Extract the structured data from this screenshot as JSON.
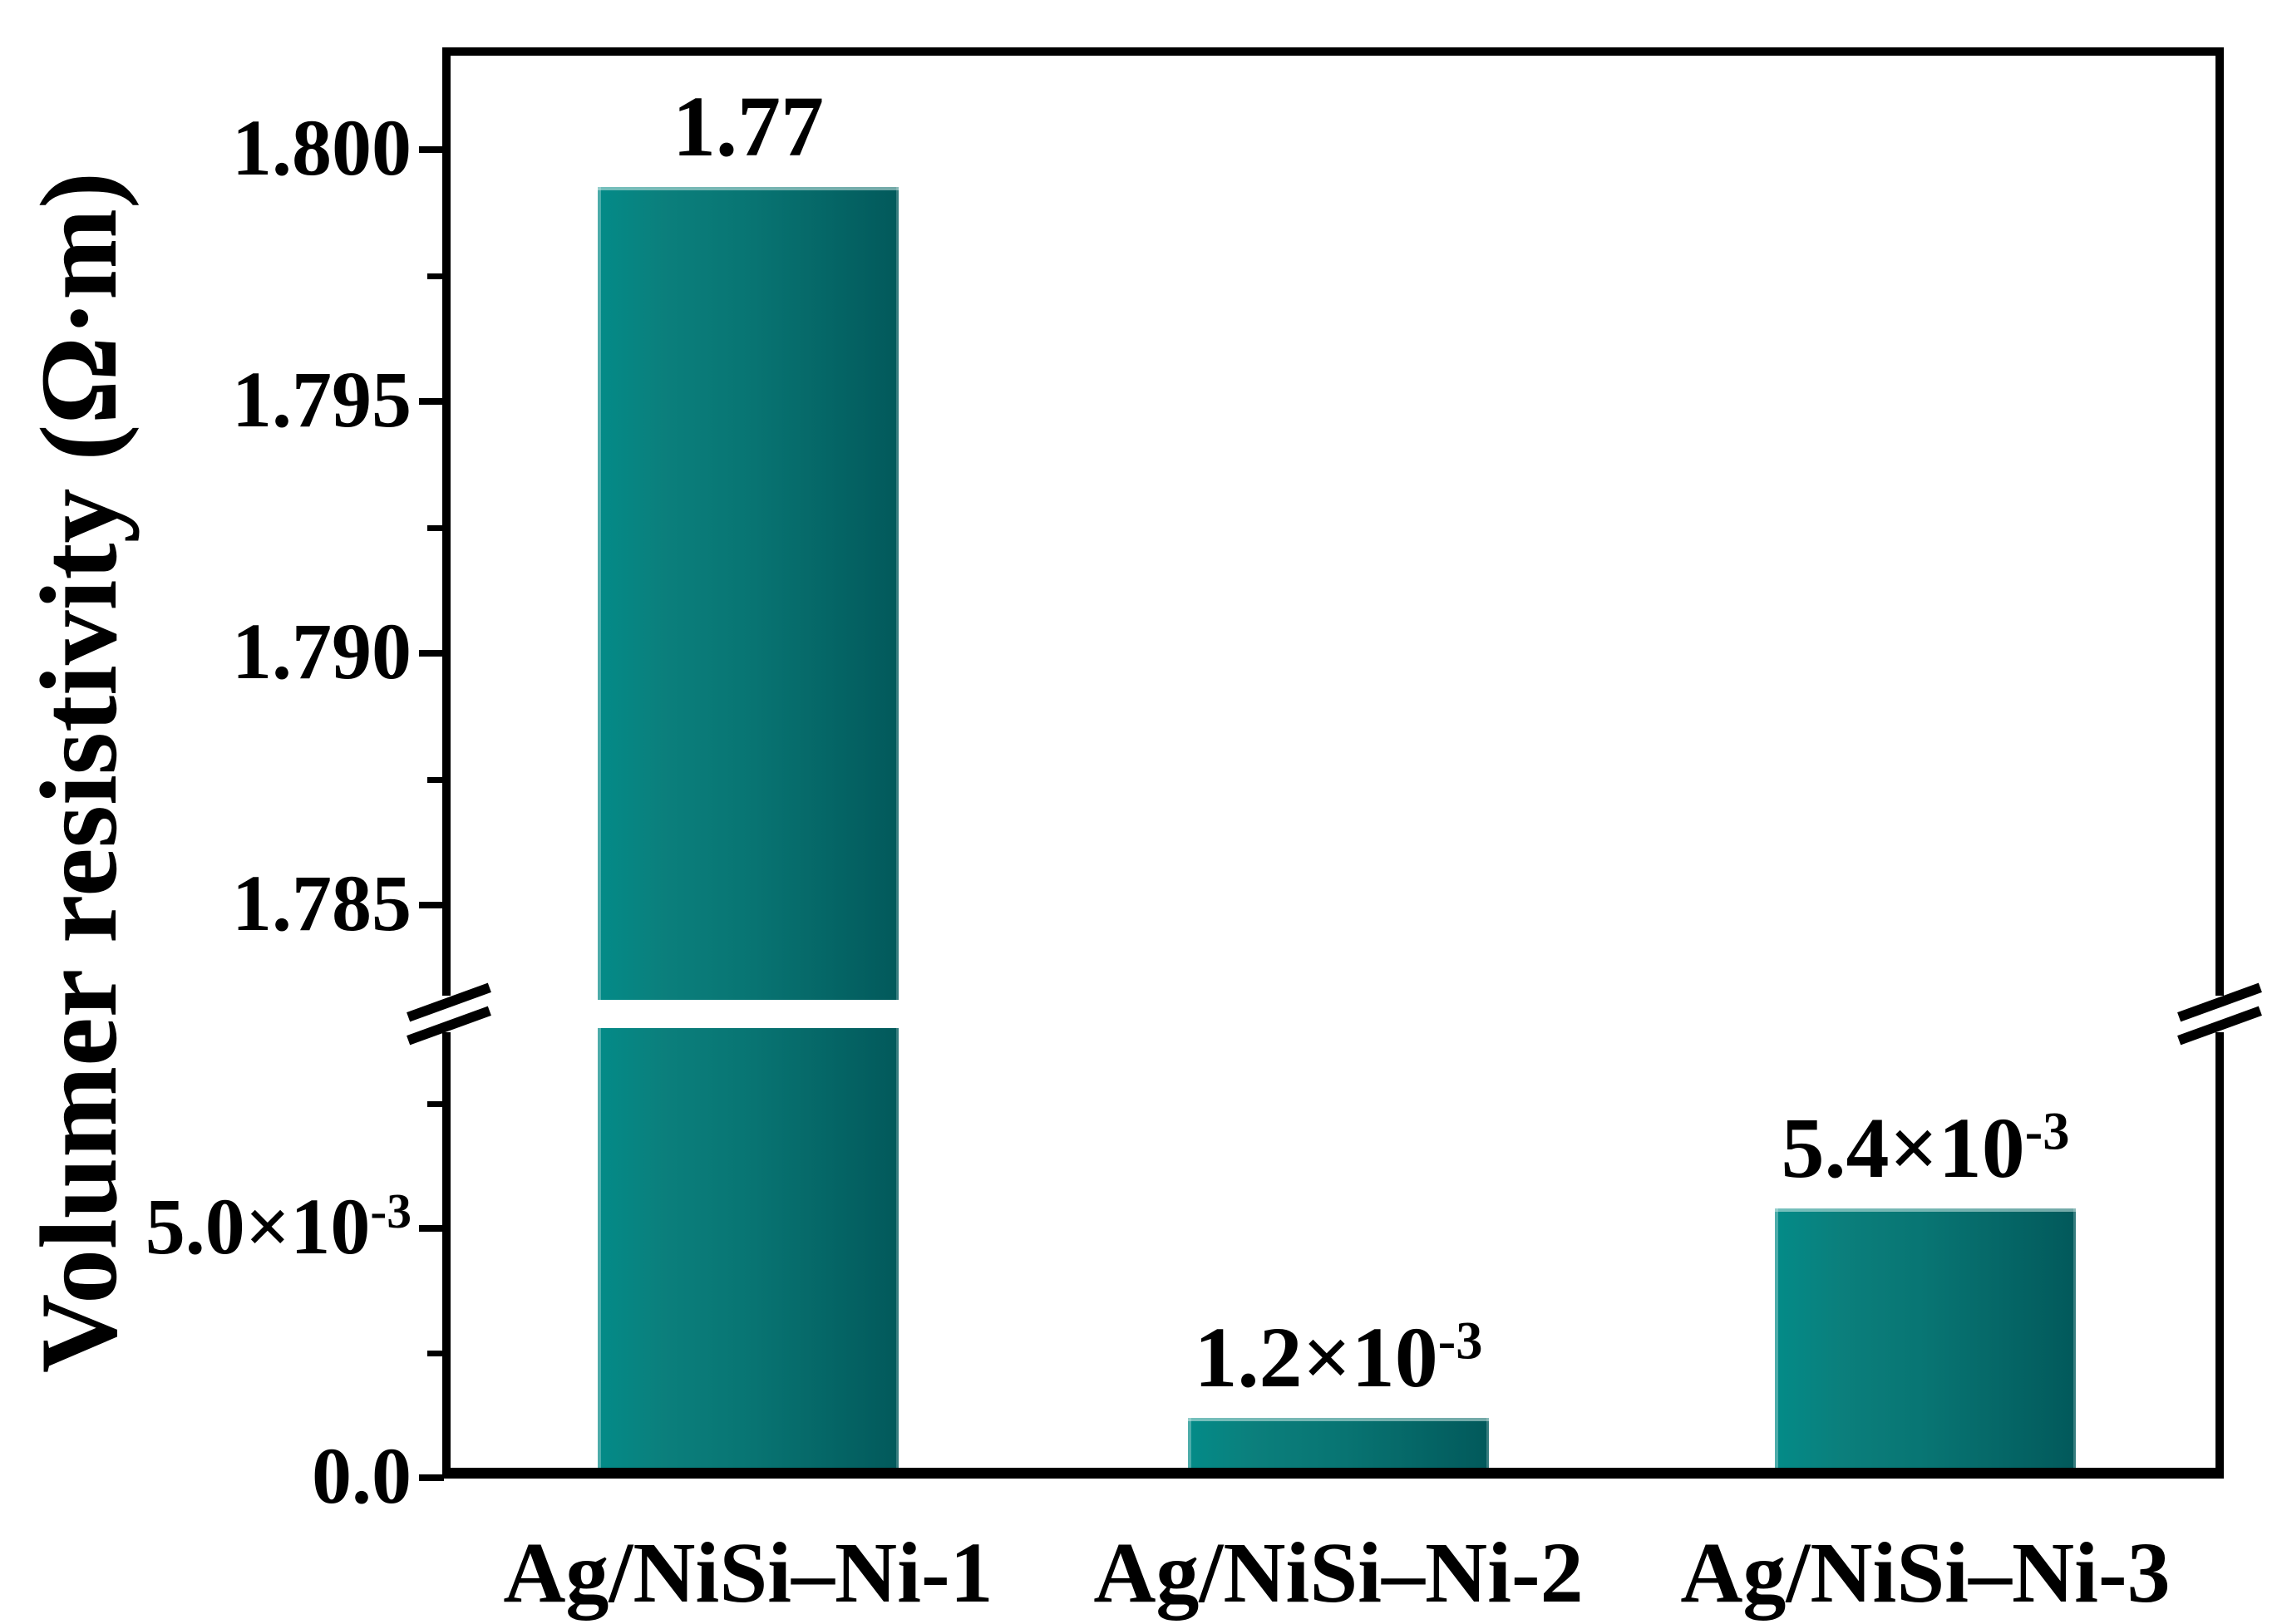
{
  "figure": {
    "background": "#ffffff"
  },
  "chart_data": {
    "type": "bar",
    "title": "",
    "xlabel": "",
    "ylabel": "Volumer resistivity (Ω·m)",
    "categories": [
      "Ag/NiSi–Ni-1",
      "Ag/NiSi–Ni-2",
      "Ag/NiSi–Ni-3"
    ],
    "values": [
      1.77,
      0.0012,
      0.0054
    ],
    "bar_labels": [
      {
        "base": "1.77",
        "sup": ""
      },
      {
        "base": "1.2×10",
        "sup": "-3"
      },
      {
        "base": "5.4×10",
        "sup": "-3"
      }
    ],
    "axis": {
      "broken": true,
      "break_between": [
        "8.8×10⁻³",
        "1.783"
      ],
      "lower_range": [
        0,
        0.0089
      ],
      "upper_range": [
        1.783,
        1.802
      ],
      "lower_major_step": 0.005,
      "upper_major_step": 0.005,
      "grid": false,
      "legend": null
    },
    "y_upper_major_ticks": [
      {
        "value": 1.8,
        "label": "1.800"
      },
      {
        "value": 1.795,
        "label": "1.795"
      },
      {
        "value": 1.79,
        "label": "1.790"
      },
      {
        "value": 1.785,
        "label": "1.785"
      }
    ],
    "y_lower_major_ticks": [
      {
        "value": 0.005,
        "label_base": "5.0×10",
        "label_sup": "-3"
      },
      {
        "value": 0.0,
        "label_base": "0.0",
        "label_sup": ""
      }
    ],
    "colors": {
      "bar_gradient_left": "#038b88",
      "bar_gradient_mid": "#087573",
      "bar_gradient_right": "#02595b",
      "axis": "#000000",
      "text": "#000000"
    }
  }
}
